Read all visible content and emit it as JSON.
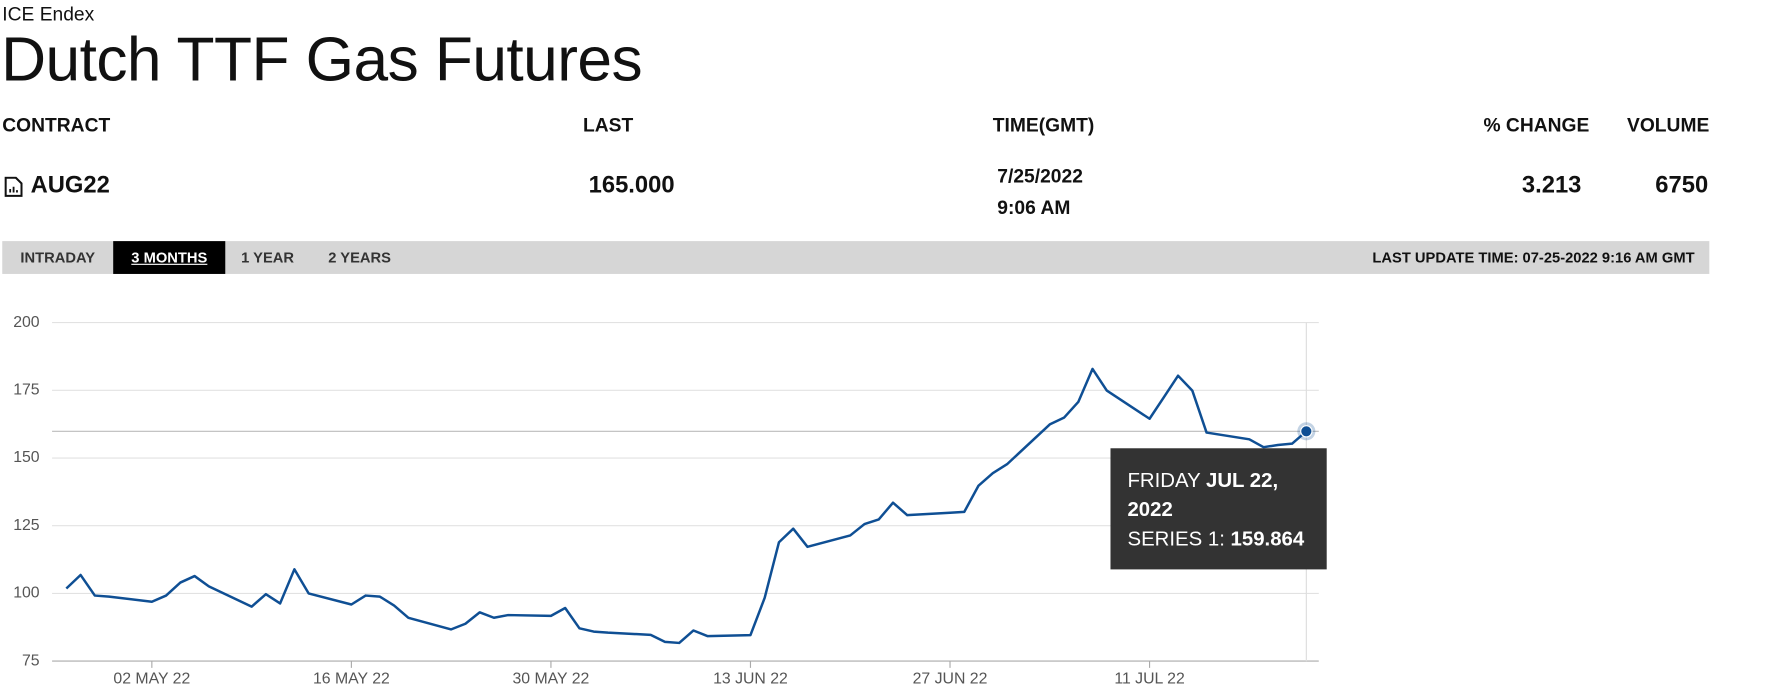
{
  "header": {
    "source": "ICE Endex",
    "title": "Dutch TTF Gas Futures"
  },
  "table": {
    "columns": [
      "CONTRACT",
      "LAST",
      "TIME(GMT)",
      "% CHANGE",
      "VOLUME"
    ],
    "row": {
      "contract": "AUG22",
      "last": "165.000",
      "date": "7/25/2022",
      "time": "9:06 AM",
      "change": "3.213",
      "volume": "6750"
    }
  },
  "tabs": [
    "INTRADAY",
    "3 MONTHS",
    "1 YEAR",
    "2 YEARS"
  ],
  "last_update": "LAST UPDATE TIME: 07-25-2022 9:16 AM GMT",
  "tooltip": {
    "day": "FRIDAY",
    "date": "JUL 22, 2022",
    "series_label": "SERIES 1:"
  },
  "chart_data": {
    "type": "line",
    "x": [
      "2022-04-26",
      "2022-04-27",
      "2022-04-28",
      "2022-04-29",
      "2022-05-02",
      "2022-05-03",
      "2022-05-04",
      "2022-05-05",
      "2022-05-06",
      "2022-05-09",
      "2022-05-10",
      "2022-05-11",
      "2022-05-12",
      "2022-05-13",
      "2022-05-16",
      "2022-05-17",
      "2022-05-18",
      "2022-05-19",
      "2022-05-20",
      "2022-05-23",
      "2022-05-24",
      "2022-05-25",
      "2022-05-26",
      "2022-05-27",
      "2022-05-30",
      "2022-05-31",
      "2022-06-01",
      "2022-06-02",
      "2022-06-03",
      "2022-06-06",
      "2022-06-07",
      "2022-06-08",
      "2022-06-09",
      "2022-06-10",
      "2022-06-13",
      "2022-06-14",
      "2022-06-15",
      "2022-06-16",
      "2022-06-17",
      "2022-06-20",
      "2022-06-21",
      "2022-06-22",
      "2022-06-23",
      "2022-06-24",
      "2022-06-27",
      "2022-06-28",
      "2022-06-29",
      "2022-06-30",
      "2022-07-01",
      "2022-07-04",
      "2022-07-05",
      "2022-07-06",
      "2022-07-07",
      "2022-07-08",
      "2022-07-11",
      "2022-07-12",
      "2022-07-13",
      "2022-07-14",
      "2022-07-15",
      "2022-07-18",
      "2022-07-19",
      "2022-07-20",
      "2022-07-21",
      "2022-07-22"
    ],
    "series": [
      {
        "color": "#0f4f94",
        "values": [
          101.8,
          106.8,
          99.2,
          98.8,
          96.9,
          99.2,
          104,
          106.4,
          102.6,
          95.1,
          99.7,
          96.3,
          108.9,
          100,
          95.9,
          99.2,
          98.8,
          95.5,
          91,
          86.7,
          88.8,
          93,
          91,
          92,
          91.7,
          94.6,
          87.1,
          85.9,
          85.5,
          84.7,
          82.1,
          81.7,
          86.3,
          84.2,
          84.6,
          98.4,
          118.9,
          123.9,
          117.2,
          121.4,
          125.6,
          127.3,
          133.5,
          128.9,
          129.8,
          130.1,
          139.8,
          144.4,
          147.7,
          162.4,
          164.9,
          170.7,
          182.9,
          174.9,
          164.5,
          172.4,
          180.4,
          174.9,
          159.4,
          156.9,
          154,
          154.8,
          155.3,
          159.864
        ]
      }
    ],
    "xlim": [
      "2022-04-25",
      "2022-07-23"
    ],
    "xticks": [
      {
        "value": "2022-05-02",
        "label": "02 MAY 22"
      },
      {
        "value": "2022-05-16",
        "label": "16 MAY 22"
      },
      {
        "value": "2022-05-30",
        "label": "30 MAY 22"
      },
      {
        "value": "2022-06-13",
        "label": "13 JUN 22"
      },
      {
        "value": "2022-06-27",
        "label": "27 JUN 22"
      },
      {
        "value": "2022-07-11",
        "label": "11 JUL 22"
      }
    ],
    "ylim": [
      75,
      200
    ],
    "yticks": [
      75,
      100,
      125,
      150,
      175,
      200
    ],
    "grid": true
  }
}
